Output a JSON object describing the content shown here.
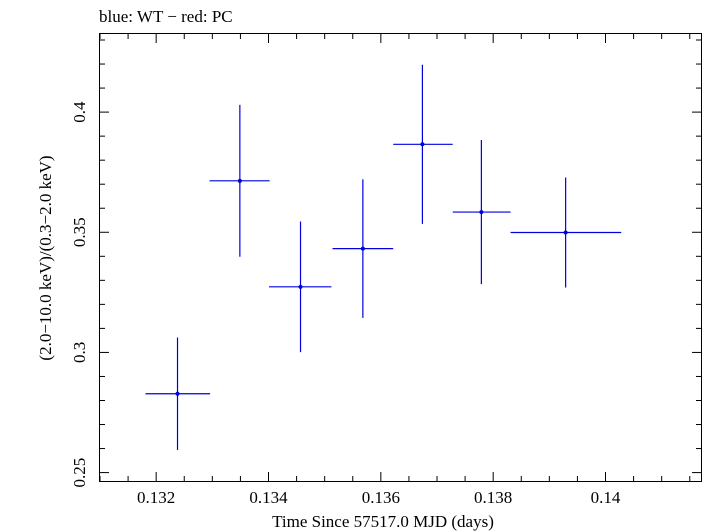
{
  "chart_data": {
    "type": "scatter",
    "title": "blue: WT − red: PC",
    "xlabel": "Time Since 57517.0 MJD (days)",
    "ylabel": "(2.0−10.0 keV)/(0.3−2.0 keV)",
    "xlim": [
      0.131,
      0.1417
    ],
    "ylim": [
      0.2465,
      0.4325
    ],
    "xticks": [
      0.132,
      0.134,
      0.136,
      0.138,
      0.14
    ],
    "xtick_labels": [
      "0.132",
      "0.134",
      "0.136",
      "0.138",
      "0.14"
    ],
    "yticks": [
      0.25,
      0.3,
      0.35,
      0.4
    ],
    "ytick_labels": [
      "0.25",
      "0.3",
      "0.35",
      "0.4"
    ],
    "grid": false,
    "legend": "none",
    "series": [
      {
        "color": "#0000e0",
        "points": [
          {
            "x": 0.13238,
            "xerr_lo": 0.00057,
            "xerr_hi": 0.00058,
            "y": 0.2828,
            "yerr_lo": 0.0234,
            "yerr_hi": 0.0234
          },
          {
            "x": 0.13349,
            "xerr_lo": 0.00054,
            "xerr_hi": 0.00053,
            "y": 0.3714,
            "yerr_lo": 0.0316,
            "yerr_hi": 0.0316
          },
          {
            "x": 0.13457,
            "xerr_lo": 0.00056,
            "xerr_hi": 0.00055,
            "y": 0.3273,
            "yerr_lo": 0.0272,
            "yerr_hi": 0.0272
          },
          {
            "x": 0.13568,
            "xerr_lo": 0.00054,
            "xerr_hi": 0.00054,
            "y": 0.3432,
            "yerr_lo": 0.0288,
            "yerr_hi": 0.0288
          },
          {
            "x": 0.13674,
            "xerr_lo": 0.00052,
            "xerr_hi": 0.00054,
            "y": 0.3866,
            "yerr_lo": 0.0331,
            "yerr_hi": 0.0331
          },
          {
            "x": 0.13779,
            "xerr_lo": 0.00051,
            "xerr_hi": 0.00052,
            "y": 0.3584,
            "yerr_lo": 0.03,
            "yerr_hi": 0.03
          },
          {
            "x": 0.13929,
            "xerr_lo": 0.00098,
            "xerr_hi": 0.00099,
            "y": 0.3499,
            "yerr_lo": 0.0229,
            "yerr_hi": 0.0229
          }
        ]
      }
    ]
  }
}
